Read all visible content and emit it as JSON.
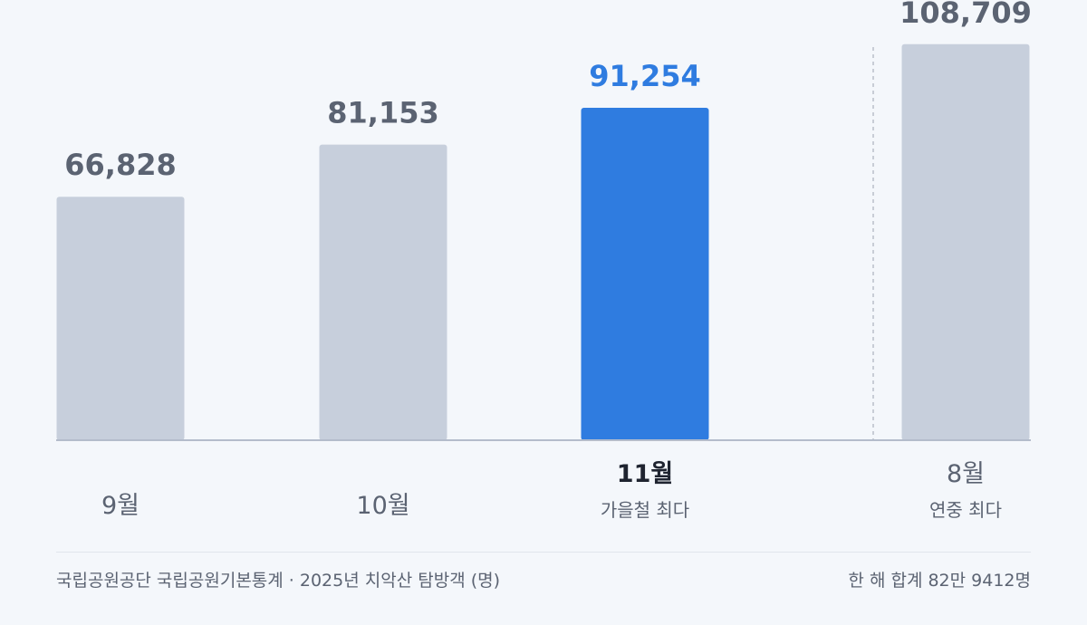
{
  "chart_data": {
    "type": "bar",
    "categories": [
      "9월",
      "10월",
      "11월",
      "8월"
    ],
    "values": [
      66828,
      81153,
      91254,
      108709
    ],
    "value_labels": [
      "66,828",
      "81,153",
      "91,254",
      "108,709"
    ],
    "notes": [
      "",
      "",
      "가을철 최다",
      "연중 최다"
    ],
    "highlight_index": 2,
    "separator_before_index": 3,
    "ylim": [
      0,
      120000
    ],
    "grid": false,
    "colors": {
      "bar": "#c7cfdc",
      "highlight": "#2f7ce0",
      "label": "#5b6372",
      "baseline": "#b4bccb",
      "separator": "#b9bfca"
    }
  },
  "footer": {
    "source": "국립공원공단 국립공원기본통계 · 2025년 치악산 탐방객 (명)",
    "total": "한 해 합계 82만 9412명"
  }
}
